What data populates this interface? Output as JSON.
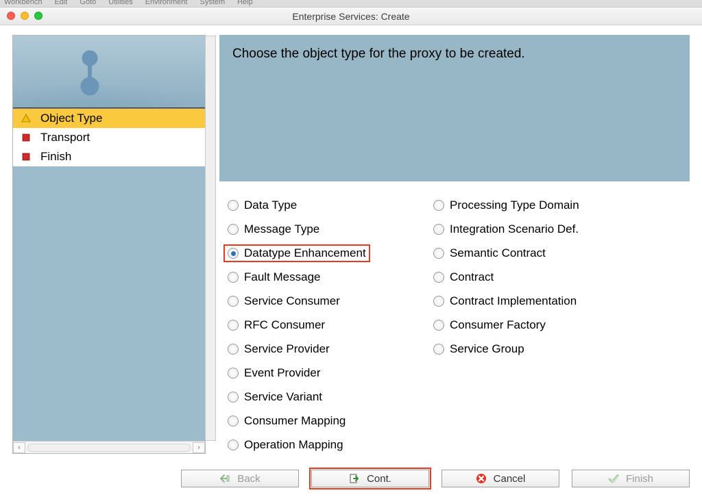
{
  "menubar": [
    "Workbench",
    "Edit",
    "Goto",
    "Utilities",
    "Environment",
    "System",
    "Help"
  ],
  "window": {
    "title": "Enterprise Services: Create"
  },
  "wizard": {
    "steps": [
      {
        "label": "Object Type",
        "icon": "triangle-warning",
        "selected": true,
        "icon_color": "#f5c000"
      },
      {
        "label": "Transport",
        "icon": "square-stop",
        "selected": false,
        "icon_color": "#d12a2a"
      },
      {
        "label": "Finish",
        "icon": "square-stop",
        "selected": false,
        "icon_color": "#d12a2a"
      }
    ]
  },
  "prompt": "Choose the object type for the proxy to be created.",
  "options": {
    "selected": "Datatype Enhancement",
    "highlighted": "Datatype Enhancement",
    "left": [
      "Data Type",
      "Message Type",
      "Datatype Enhancement",
      "Fault Message",
      "Service Consumer",
      "RFC Consumer",
      "Service Provider",
      "Event Provider",
      "Service Variant",
      "Consumer Mapping",
      "Operation Mapping"
    ],
    "right": [
      "Processing Type Domain",
      "Integration Scenario Def.",
      "Semantic Contract",
      "Contract",
      "Contract Implementation",
      "Consumer Factory",
      "Service Group"
    ]
  },
  "buttons": {
    "back": {
      "label": "Back",
      "disabled": true,
      "highlight": false
    },
    "cont": {
      "label": "Cont.",
      "disabled": false,
      "highlight": true
    },
    "cancel": {
      "label": "Cancel",
      "disabled": false,
      "highlight": false
    },
    "finish": {
      "label": "Finish",
      "disabled": true,
      "highlight": false
    }
  },
  "colors": {
    "panel_blue": "#98b7c6",
    "selection_yellow": "#fbc93d",
    "highlight_red": "#e63a1f",
    "radio_dot": "#2a73b9"
  }
}
